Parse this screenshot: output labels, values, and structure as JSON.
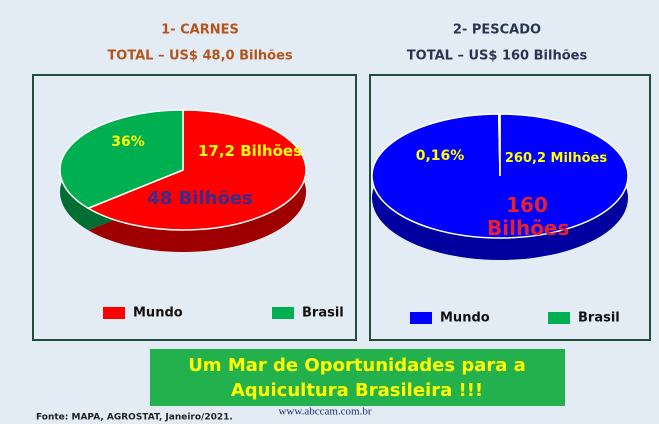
{
  "chart_data": [
    {
      "type": "pie",
      "title": "1- CARNES",
      "subtitle": "TOTAL – US$ 48,0 Bilhões",
      "categories": [
        "Mundo",
        "Brasil"
      ],
      "values": [
        64,
        36
      ],
      "value_labels": [
        null,
        "36%"
      ],
      "colors": [
        "#ff0000",
        "#00b050"
      ],
      "annotations": [
        "17,2 Bilhões",
        "48 Bilhões"
      ]
    },
    {
      "type": "pie",
      "title": "2- PESCADO",
      "subtitle": "TOTAL – US$ 160 Bilhões",
      "categories": [
        "Mundo",
        "Brasil"
      ],
      "values": [
        99.84,
        0.16
      ],
      "value_labels": [
        null,
        "0,16%"
      ],
      "colors": [
        "#0000ff",
        "#00b050"
      ],
      "annotations": [
        "260,2 Milhões",
        "160 Bilhões"
      ]
    }
  ],
  "banner": [
    "Um Mar de Oportunidades para a",
    "Aquicultura Brasileira !!!"
  ],
  "source": "Fonte: MAPA, AGROSTAT, Janeiro/2021.",
  "website": "www.abccam.com.br"
}
